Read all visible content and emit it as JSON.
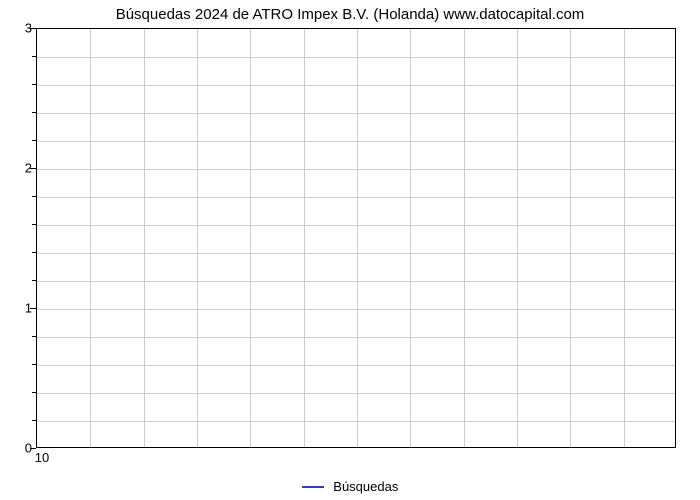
{
  "chart": {
    "type": "line",
    "title": "Búsquedas 2024 de ATRO Impex B.V. (Holanda) www.datocapital.com",
    "title_fontsize": 15,
    "title_color": "#000000",
    "background_color": "#ffffff",
    "plot_border_color": "#000000",
    "grid_color": "#cccccc",
    "y_axis": {
      "min": 0,
      "max": 3,
      "major_ticks": [
        0,
        1,
        2,
        3
      ],
      "minor_tick_count_between": 4,
      "tick_label_fontsize": 13,
      "tick_label_color": "#000000"
    },
    "x_axis": {
      "ticks": [
        "10"
      ],
      "tick_label_fontsize": 13,
      "tick_label_color": "#000000",
      "vertical_gridlines": 12
    },
    "series": [
      {
        "name": "Búsquedas",
        "color": "#2040d0",
        "line_width": 2,
        "data": []
      }
    ],
    "legend": {
      "position": "bottom-center",
      "items": [
        {
          "label": "Búsquedas",
          "color": "#2040d0"
        }
      ],
      "fontsize": 13
    }
  }
}
